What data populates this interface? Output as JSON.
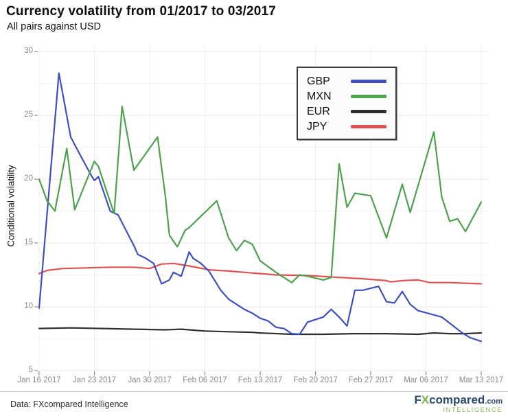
{
  "header": {
    "title": "Currency volatility from 01/2017 to 03/2017",
    "subtitle": "All pairs against USD"
  },
  "chart_data": {
    "type": "line",
    "title": "Currency volatility from 01/2017 to 03/2017",
    "subtitle": "All pairs against USD",
    "xlabel": "",
    "ylabel": "Conditional volatility",
    "ylim": [
      5,
      30
    ],
    "y_ticks": [
      5,
      10,
      15,
      20,
      25,
      30
    ],
    "grid": "on (faint horizontal every 2.5 units, faint vertical weekly)",
    "legend_position": "top-right box",
    "x_unit": "days from Jan 16 2017",
    "x_range_days": 56,
    "x_ticks": [
      {
        "label": "Jan 16 2017",
        "d": 0
      },
      {
        "label": "Jan 23 2017",
        "d": 7
      },
      {
        "label": "Jan 30 2017",
        "d": 14
      },
      {
        "label": "Feb 06 2017",
        "d": 21
      },
      {
        "label": "Feb 13 2017",
        "d": 28
      },
      {
        "label": "Feb 20 2017",
        "d": 35
      },
      {
        "label": "Feb 27 2017",
        "d": 42
      },
      {
        "label": "Mar 06 2017",
        "d": 49
      },
      {
        "label": "Mar 13 2017",
        "d": 56
      }
    ],
    "series": [
      {
        "name": "GBP",
        "color": "#3D4FBE",
        "points": [
          [
            0,
            9.9
          ],
          [
            2.5,
            28.3
          ],
          [
            4,
            23.3
          ],
          [
            4.5,
            22.7
          ],
          [
            6.5,
            20.4
          ],
          [
            7,
            19.9
          ],
          [
            7.5,
            20.2
          ],
          [
            9,
            17.5
          ],
          [
            10,
            17.2
          ],
          [
            12,
            14.8
          ],
          [
            12.5,
            14.1
          ],
          [
            13.5,
            13.8
          ],
          [
            14.5,
            13.4
          ],
          [
            15.5,
            11.8
          ],
          [
            16.5,
            12.1
          ],
          [
            17,
            12.7
          ],
          [
            18,
            12.4
          ],
          [
            19,
            14.3
          ],
          [
            19.5,
            13.8
          ],
          [
            20.5,
            13.4
          ],
          [
            21.5,
            12.8
          ],
          [
            23,
            11.3
          ],
          [
            24,
            10.6
          ],
          [
            25,
            10.2
          ],
          [
            26,
            9.8
          ],
          [
            27,
            9.5
          ],
          [
            28,
            9.1
          ],
          [
            29,
            8.9
          ],
          [
            30,
            8.4
          ],
          [
            31,
            8.3
          ],
          [
            32,
            7.9
          ],
          [
            33,
            7.85
          ],
          [
            34,
            8.8
          ],
          [
            36,
            9.2
          ],
          [
            37,
            9.8
          ],
          [
            38,
            9.2
          ],
          [
            39,
            8.5
          ],
          [
            40,
            11.3
          ],
          [
            41,
            11.3
          ],
          [
            43,
            11.6
          ],
          [
            44,
            10.4
          ],
          [
            45,
            10.3
          ],
          [
            46,
            11.2
          ],
          [
            47,
            10.2
          ],
          [
            48,
            9.7
          ],
          [
            51,
            9.2
          ],
          [
            53.5,
            8.0
          ],
          [
            54.5,
            7.6
          ],
          [
            55.5,
            7.4
          ],
          [
            56,
            7.3
          ]
        ]
      },
      {
        "name": "MXN",
        "color": "#4CA24C",
        "points": [
          [
            0,
            20.0
          ],
          [
            1,
            18.3
          ],
          [
            2,
            17.5
          ],
          [
            3.5,
            22.4
          ],
          [
            4.5,
            17.6
          ],
          [
            7,
            21.4
          ],
          [
            7.5,
            21.0
          ],
          [
            9.5,
            17.3
          ],
          [
            10.5,
            25.7
          ],
          [
            12,
            20.7
          ],
          [
            15,
            23.3
          ],
          [
            16,
            18.6
          ],
          [
            16.5,
            15.6
          ],
          [
            17.5,
            14.7
          ],
          [
            18.5,
            16.0
          ],
          [
            19,
            16.2
          ],
          [
            22.5,
            18.3
          ],
          [
            24,
            15.4
          ],
          [
            25,
            14.4
          ],
          [
            26,
            15.2
          ],
          [
            27,
            14.9
          ],
          [
            28,
            13.6
          ],
          [
            30,
            12.7
          ],
          [
            32,
            11.9
          ],
          [
            33,
            12.5
          ],
          [
            34,
            12.4
          ],
          [
            36,
            12.1
          ],
          [
            37,
            12.3
          ],
          [
            38,
            21.2
          ],
          [
            39,
            17.8
          ],
          [
            40,
            18.9
          ],
          [
            42,
            18.7
          ],
          [
            44,
            15.4
          ],
          [
            46,
            19.6
          ],
          [
            47,
            17.4
          ],
          [
            50,
            23.7
          ],
          [
            51,
            18.6
          ],
          [
            52,
            16.7
          ],
          [
            53,
            16.9
          ],
          [
            54,
            15.9
          ],
          [
            56,
            18.2
          ]
        ]
      },
      {
        "name": "EUR",
        "color": "#2E2E2E",
        "points": [
          [
            0,
            8.3
          ],
          [
            4,
            8.35
          ],
          [
            8,
            8.3
          ],
          [
            12,
            8.25
          ],
          [
            16,
            8.2
          ],
          [
            18,
            8.25
          ],
          [
            21,
            8.1
          ],
          [
            24,
            8.05
          ],
          [
            27,
            8.0
          ],
          [
            28,
            7.95
          ],
          [
            32,
            7.85
          ],
          [
            36,
            7.85
          ],
          [
            40,
            7.9
          ],
          [
            44,
            7.9
          ],
          [
            48,
            7.85
          ],
          [
            50,
            7.95
          ],
          [
            52,
            7.9
          ],
          [
            54,
            7.9
          ],
          [
            56,
            7.95
          ]
        ]
      },
      {
        "name": "JPY",
        "color": "#E05252",
        "points": [
          [
            0,
            12.6
          ],
          [
            1,
            12.85
          ],
          [
            3,
            13.0
          ],
          [
            6,
            13.05
          ],
          [
            9,
            13.1
          ],
          [
            12,
            13.1
          ],
          [
            14,
            13.0
          ],
          [
            15.5,
            13.35
          ],
          [
            17,
            13.4
          ],
          [
            19,
            13.2
          ],
          [
            21.5,
            12.9
          ],
          [
            24,
            12.8
          ],
          [
            26,
            12.7
          ],
          [
            28,
            12.6
          ],
          [
            30,
            12.5
          ],
          [
            34,
            12.45
          ],
          [
            38,
            12.3
          ],
          [
            41,
            12.2
          ],
          [
            44,
            12.05
          ],
          [
            44.5,
            11.95
          ],
          [
            46,
            12.05
          ],
          [
            48,
            12.1
          ],
          [
            49.5,
            11.9
          ],
          [
            52,
            11.9
          ],
          [
            54,
            11.85
          ],
          [
            56,
            11.8
          ]
        ]
      }
    ]
  },
  "footer": {
    "source": "Data: FXcompared Intelligence",
    "logo": {
      "f": "F",
      "x": "X",
      "rest": "compared",
      "dotcom": ".com",
      "tagline": "INTELLIGENCE"
    }
  }
}
